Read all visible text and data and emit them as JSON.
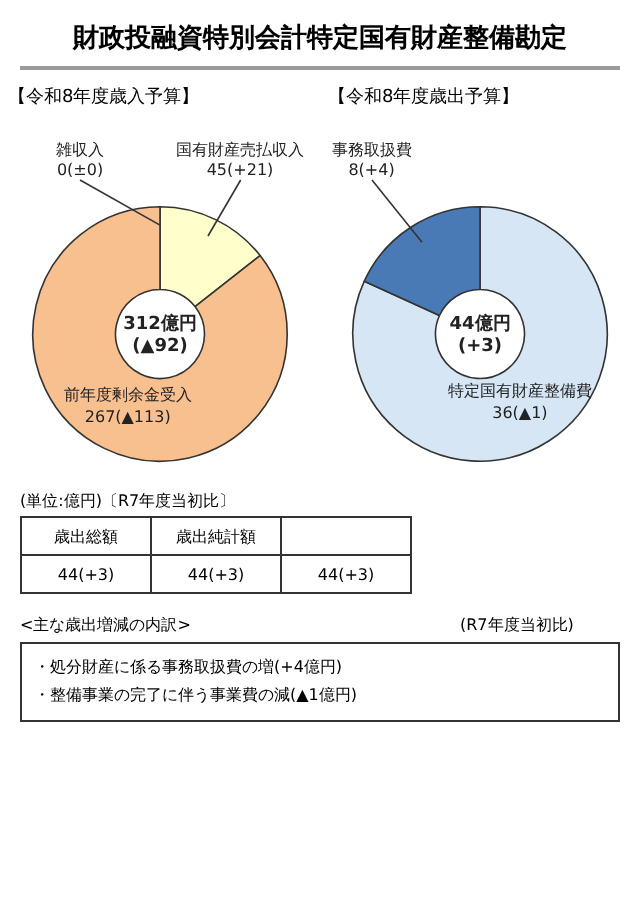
{
  "chart_data": [
    {
      "type": "other",
      "title": "財政投融資特別会計特定国有財産整備勘定"
    },
    {
      "type": "donut",
      "title": "【令和8年度歳入予算】",
      "categories": [
        "雑収入",
        "国有財産売払収入",
        "前年度剰余金受入"
      ],
      "values": [
        0,
        45,
        267
      ],
      "value_labels": [
        "0(±0)",
        "45(+21)",
        "267(▲113)"
      ],
      "colors": [
        "#ffffcc",
        "#ffffcc",
        "#f9c08f"
      ],
      "annotations": [
        "312億円",
        "(▲92)"
      ]
    },
    {
      "type": "donut",
      "title": "【令和8年度歳出予算】",
      "categories": [
        "特定国有財産整備費",
        "事務取扱費"
      ],
      "values": [
        36,
        8
      ],
      "value_labels": [
        "36(▲1)",
        "8(+4)"
      ],
      "colors": [
        "#d6e6f5",
        "#4a7ab5"
      ],
      "annotations": [
        "44億円",
        "(+3)"
      ]
    },
    {
      "type": "other",
      "annotations": [
        "(単位:億円)〔R7年度当初比〕",
        "歳出総額",
        "歳出純計額",
        "44(+3)",
        "44(+3)",
        "44(+3)",
        "<主な歳出増減の内訳>",
        "・処分財産に係る事務取扱費の増(+4億円)",
        "・整備事業の完了に伴う事業費の減(▲1億円)",
        "(R7年度当初比)"
      ]
    }
  ]
}
